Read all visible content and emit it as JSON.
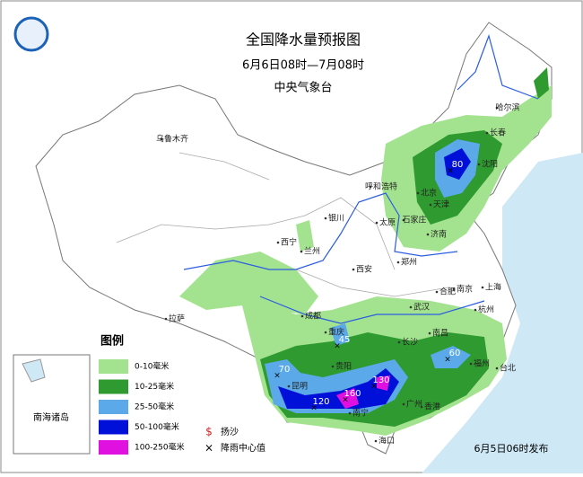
{
  "header": {
    "title": "全国降水量预报图",
    "period": "6月6日08时—7月08时",
    "issuer": "中央气象台"
  },
  "legend": {
    "title": "图例",
    "items": [
      {
        "label": "0-10毫米",
        "color": "#a3e38f"
      },
      {
        "label": "10-25毫米",
        "color": "#2f9a2f"
      },
      {
        "label": "25-50毫米",
        "color": "#5ba9e8"
      },
      {
        "label": "50-100毫米",
        "color": "#0010d8"
      },
      {
        "label": "100-250毫米",
        "color": "#e010e0"
      }
    ],
    "symbols": [
      {
        "mark": "$",
        "label": "扬沙"
      },
      {
        "mark": "×",
        "label": "降雨中心值"
      }
    ]
  },
  "cities": [
    "乌鲁木齐",
    "呼和浩特",
    "北京",
    "天津",
    "石家庄",
    "太原",
    "济南",
    "银川",
    "西宁",
    "兰州",
    "郑州",
    "西安",
    "合肥",
    "南京",
    "上海",
    "杭州",
    "成都",
    "武汉",
    "重庆",
    "长沙",
    "南昌",
    "贵阳",
    "福州",
    "台北",
    "昆明",
    "南宁",
    "广州",
    "香港",
    "海口",
    "拉萨",
    "沈阳",
    "长春",
    "哈尔滨"
  ],
  "rain_centers": [
    "80",
    "45",
    "70",
    "120",
    "160",
    "130",
    "60"
  ],
  "inset": {
    "label": "南海诸岛"
  },
  "footer": {
    "issued": "6月5日06时发布"
  }
}
